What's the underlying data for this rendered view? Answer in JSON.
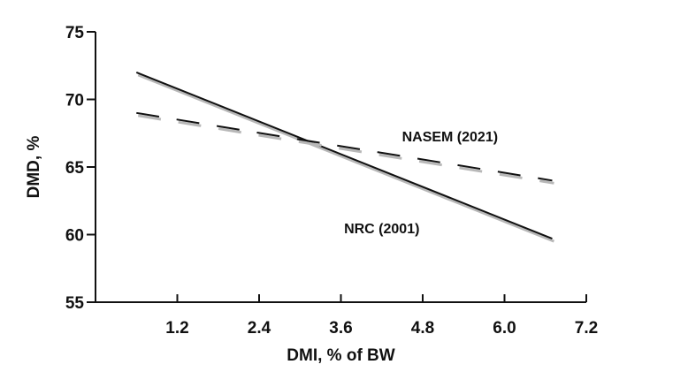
{
  "chart_data": {
    "type": "line",
    "xlabel": "DMI, % of BW",
    "ylabel": "DMD, %",
    "xlim": [
      0,
      7.2
    ],
    "ylim": [
      55,
      75
    ],
    "x_ticks": [
      1.2,
      2.4,
      3.6,
      4.8,
      6.0,
      7.2
    ],
    "x_tick_labels": [
      "1.2",
      "2.4",
      "3.6",
      "4.8",
      "6.0",
      "7.2"
    ],
    "y_ticks": [
      55,
      60,
      65,
      70,
      75
    ],
    "y_tick_labels": [
      "55",
      "60",
      "65",
      "70",
      "75"
    ],
    "grid": false,
    "series": [
      {
        "name": "NRC (2001)",
        "style": "solid",
        "color": "#111111",
        "x": [
          0.6,
          6.7
        ],
        "y": [
          72.0,
          59.7
        ]
      },
      {
        "name": "NASEM (2021)",
        "style": "dashed",
        "color": "#111111",
        "x": [
          0.6,
          6.7
        ],
        "y": [
          69.0,
          64.0
        ]
      }
    ],
    "annotations": [
      {
        "text": "NASEM (2021)",
        "series": "NASEM (2021)",
        "x": 5.2,
        "y": 66.9
      },
      {
        "text": "NRC (2001)",
        "series": "NRC (2001)",
        "x": 4.2,
        "y": 60.1
      }
    ]
  }
}
